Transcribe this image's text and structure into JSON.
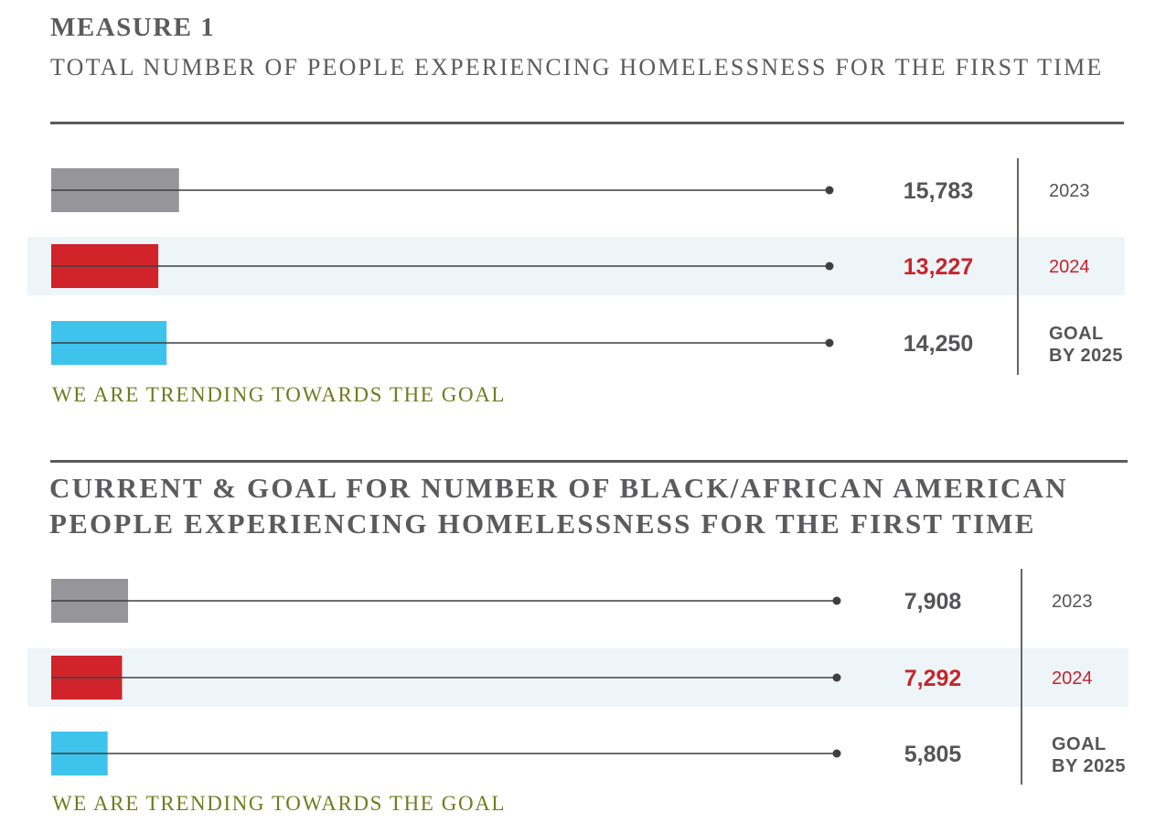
{
  "measure1": {
    "label": "MEASURE 1",
    "subtitle": "TOTAL NUMBER OF PEOPLE EXPERIENCING HOMELESSNESS FOR THE FIRST TIME",
    "trend_text": "WE ARE TRENDING TOWARDS THE GOAL"
  },
  "measure2": {
    "title": "CURRENT & GOAL FOR NUMBER OF BLACK/AFRICAN AMERICAN PEOPLE EXPERIENCING HOMELESSNESS FOR THE FIRST TIME",
    "trend_text": "WE ARE TRENDING TOWARDS THE GOAL"
  },
  "colors": {
    "year_2023": "#96969a",
    "year_2024": "#d1232a",
    "goal": "#3ec3ec",
    "value_text": "#555557",
    "highlight_text": "#c8242c",
    "highlight_row": "#eef5f9",
    "trend_text": "#6b7e1e"
  },
  "chart_data": [
    {
      "type": "bar",
      "orientation": "horizontal",
      "categories": [
        "2023",
        "2024",
        "GOAL BY 2025"
      ],
      "category_lines": [
        [
          "2023"
        ],
        [
          "2024"
        ],
        [
          "GOAL",
          "BY 2025"
        ]
      ],
      "values": [
        15783,
        13227,
        14250
      ],
      "value_labels": [
        "15,783",
        "13,227",
        "14,250"
      ],
      "highlight": "2024",
      "xlim": [
        0,
        144000
      ]
    },
    {
      "type": "bar",
      "orientation": "horizontal",
      "categories": [
        "2023",
        "2024",
        "GOAL BY 2025"
      ],
      "category_lines": [
        [
          "2023"
        ],
        [
          "2024"
        ],
        [
          "GOAL",
          "BY 2025"
        ]
      ],
      "values": [
        7908,
        7292,
        5805
      ],
      "value_labels": [
        "7,908",
        "7,292",
        "5,805"
      ],
      "highlight": "2024",
      "xlim": [
        0,
        120000
      ]
    }
  ]
}
